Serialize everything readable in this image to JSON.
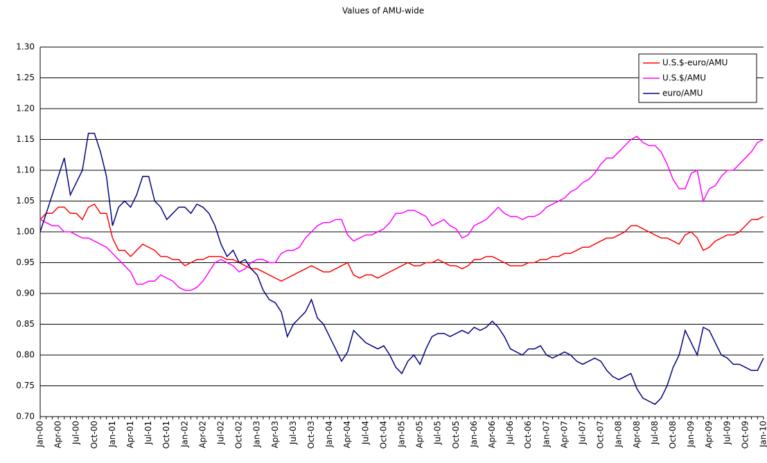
{
  "chart_data": {
    "type": "line",
    "title": "Values of AMU-wide",
    "categories": [
      "Jan-00",
      null,
      null,
      "Apr-00",
      null,
      null,
      "Jul-00",
      null,
      null,
      "Oct-00",
      null,
      null,
      "Jan-01",
      null,
      null,
      "Apr-01",
      null,
      null,
      "Jul-01",
      null,
      null,
      "Oct-01",
      null,
      null,
      "Jan-02",
      null,
      null,
      "Apr-02",
      null,
      null,
      "Jul-02",
      null,
      null,
      "Oct-02",
      null,
      null,
      "Jan-03",
      null,
      null,
      "Apr-03",
      null,
      null,
      "Jul-03",
      null,
      null,
      "Oct-03",
      null,
      null,
      "Jan-04",
      null,
      null,
      "Apr-04",
      null,
      null,
      "Jul-04",
      null,
      null,
      "Oct-04",
      null,
      null,
      "Jan-05",
      null,
      null,
      "Apr-05",
      null,
      null,
      "Jul-05",
      null,
      null,
      "Oct-05",
      null,
      null,
      "Jan-06",
      null,
      null,
      "Apr-06",
      null,
      null,
      "Jul-06",
      null,
      null,
      "Oct-06",
      null,
      null,
      "Jan-07",
      null,
      null,
      "Apr-07",
      null,
      null,
      "Jul-07",
      null,
      null,
      "Oct-07",
      null,
      null,
      "Jan-08",
      null,
      null,
      "Apr-08",
      null,
      null,
      "Jul-08",
      null,
      null,
      "Oct-08",
      null,
      null,
      "Jan-09",
      null,
      null,
      "Apr-09",
      null,
      null,
      "Jul-09",
      null,
      null,
      "Oct-09",
      null,
      null,
      "Jan-10"
    ],
    "series": [
      {
        "name": "U.S.$-euro/AMU",
        "color": "#ff0000",
        "values": [
          1.02,
          1.03,
          1.03,
          1.04,
          1.04,
          1.03,
          1.03,
          1.02,
          1.04,
          1.045,
          1.03,
          1.03,
          0.99,
          0.97,
          0.97,
          0.96,
          0.97,
          0.98,
          0.975,
          0.97,
          0.96,
          0.96,
          0.955,
          0.955,
          0.945,
          0.95,
          0.955,
          0.955,
          0.96,
          0.96,
          0.96,
          0.955,
          0.955,
          0.95,
          0.945,
          0.94,
          0.94,
          0.935,
          0.93,
          0.925,
          0.92,
          0.925,
          0.93,
          0.935,
          0.94,
          0.945,
          0.94,
          0.935,
          0.935,
          0.94,
          0.945,
          0.95,
          0.93,
          0.925,
          0.93,
          0.93,
          0.925,
          0.93,
          0.935,
          0.94,
          0.945,
          0.95,
          0.945,
          0.945,
          0.95,
          0.95,
          0.955,
          0.95,
          0.945,
          0.945,
          0.94,
          0.945,
          0.955,
          0.955,
          0.96,
          0.96,
          0.955,
          0.95,
          0.945,
          0.945,
          0.945,
          0.95,
          0.95,
          0.955,
          0.955,
          0.96,
          0.96,
          0.965,
          0.965,
          0.97,
          0.975,
          0.975,
          0.98,
          0.985,
          0.99,
          0.99,
          0.995,
          1.0,
          1.01,
          1.01,
          1.005,
          1.0,
          0.995,
          0.99,
          0.99,
          0.985,
          0.98,
          0.995,
          1.0,
          0.99,
          0.97,
          0.975,
          0.985,
          0.99,
          0.995,
          0.995,
          1.0,
          1.01,
          1.02,
          1.02,
          1.025
        ]
      },
      {
        "name": "U.S.$/AMU",
        "color": "#ff00ff",
        "values": [
          1.02,
          1.015,
          1.01,
          1.01,
          1.0,
          1.0,
          0.995,
          0.99,
          0.99,
          0.985,
          0.98,
          0.975,
          0.965,
          0.955,
          0.945,
          0.935,
          0.915,
          0.915,
          0.92,
          0.92,
          0.93,
          0.925,
          0.92,
          0.91,
          0.905,
          0.905,
          0.91,
          0.92,
          0.935,
          0.95,
          0.955,
          0.95,
          0.945,
          0.935,
          0.94,
          0.95,
          0.955,
          0.955,
          0.95,
          0.95,
          0.965,
          0.97,
          0.97,
          0.975,
          0.99,
          1.0,
          1.01,
          1.015,
          1.015,
          1.02,
          1.02,
          0.995,
          0.985,
          0.99,
          0.995,
          0.995,
          1.0,
          1.005,
          1.015,
          1.03,
          1.03,
          1.035,
          1.035,
          1.03,
          1.025,
          1.01,
          1.015,
          1.02,
          1.01,
          1.005,
          0.99,
          0.995,
          1.01,
          1.015,
          1.02,
          1.03,
          1.04,
          1.03,
          1.025,
          1.025,
          1.02,
          1.025,
          1.025,
          1.03,
          1.04,
          1.045,
          1.05,
          1.055,
          1.065,
          1.07,
          1.08,
          1.085,
          1.095,
          1.11,
          1.12,
          1.12,
          1.13,
          1.14,
          1.15,
          1.155,
          1.145,
          1.14,
          1.14,
          1.13,
          1.11,
          1.085,
          1.07,
          1.07,
          1.095,
          1.1,
          1.05,
          1.07,
          1.075,
          1.09,
          1.1,
          1.1,
          1.11,
          1.12,
          1.13,
          1.145,
          1.15
        ]
      },
      {
        "name": "euro/AMU",
        "color": "#000080",
        "values": [
          1.0,
          1.03,
          1.06,
          1.09,
          1.12,
          1.06,
          1.08,
          1.1,
          1.16,
          1.16,
          1.13,
          1.09,
          1.01,
          1.04,
          1.05,
          1.04,
          1.06,
          1.09,
          1.09,
          1.05,
          1.04,
          1.02,
          1.03,
          1.04,
          1.04,
          1.03,
          1.045,
          1.04,
          1.03,
          1.01,
          0.98,
          0.96,
          0.97,
          0.95,
          0.955,
          0.94,
          0.93,
          0.905,
          0.89,
          0.885,
          0.87,
          0.83,
          0.85,
          0.86,
          0.87,
          0.89,
          0.86,
          0.85,
          0.83,
          0.81,
          0.79,
          0.805,
          0.84,
          0.83,
          0.82,
          0.815,
          0.81,
          0.815,
          0.8,
          0.78,
          0.77,
          0.79,
          0.8,
          0.785,
          0.81,
          0.83,
          0.835,
          0.835,
          0.83,
          0.835,
          0.84,
          0.835,
          0.845,
          0.84,
          0.845,
          0.855,
          0.845,
          0.83,
          0.81,
          0.805,
          0.8,
          0.81,
          0.81,
          0.815,
          0.8,
          0.795,
          0.8,
          0.805,
          0.8,
          0.79,
          0.785,
          0.79,
          0.795,
          0.79,
          0.775,
          0.765,
          0.76,
          0.765,
          0.77,
          0.745,
          0.73,
          0.725,
          0.72,
          0.73,
          0.75,
          0.78,
          0.8,
          0.84,
          0.82,
          0.8,
          0.845,
          0.84,
          0.82,
          0.8,
          0.795,
          0.785,
          0.785,
          0.78,
          0.775,
          0.775,
          0.795
        ]
      }
    ],
    "ylim": [
      0.7,
      1.3
    ],
    "yticks": [
      {
        "value": 0.7,
        "label": "0.70"
      },
      0.75,
      {
        "value": 0.8,
        "label": "0.80"
      },
      0.85,
      {
        "value": 0.9,
        "label": "0.90"
      },
      0.95,
      {
        "value": 1.0,
        "label": "1.00"
      },
      1.05,
      {
        "value": 1.1,
        "label": "1.10"
      },
      1.15,
      {
        "value": 1.2,
        "label": "1.20"
      },
      1.25,
      {
        "value": 1.3,
        "label": "1.30"
      }
    ],
    "grid": true,
    "legend": "top-right"
  }
}
